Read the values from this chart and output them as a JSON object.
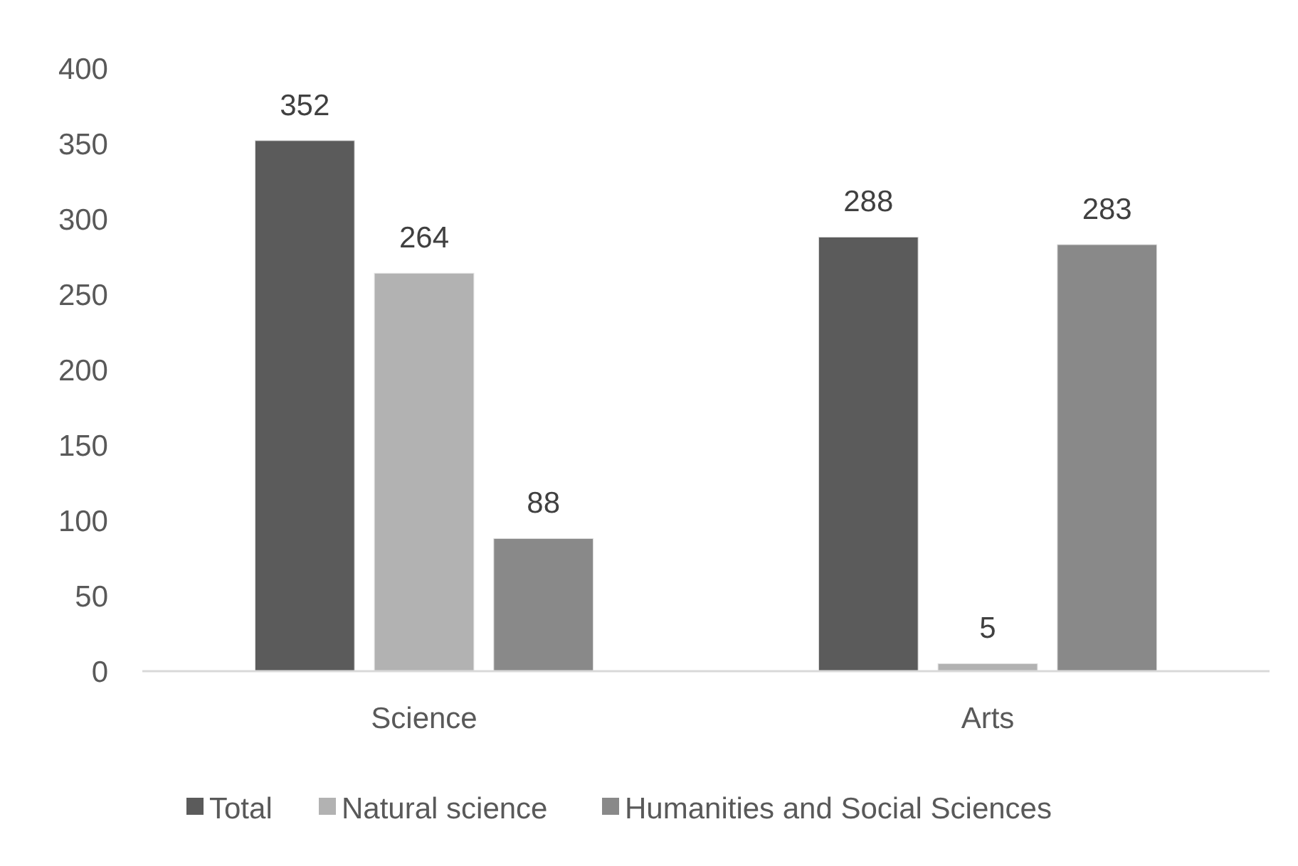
{
  "chart_data": {
    "type": "bar",
    "categories": [
      "Science",
      "Arts"
    ],
    "series": [
      {
        "name": "Total",
        "color": "#5b5b5b",
        "values": [
          352,
          288
        ]
      },
      {
        "name": "Natural science",
        "color": "#b2b2b2",
        "values": [
          264,
          5
        ]
      },
      {
        "name": "Humanities and Social Sciences",
        "color": "#898989",
        "values": [
          88,
          283
        ]
      }
    ],
    "ylim": [
      0,
      400
    ],
    "yticks": [
      0,
      50,
      100,
      150,
      200,
      250,
      300,
      350,
      400
    ],
    "grid": false,
    "legend": "bottom",
    "data_labels": true
  }
}
